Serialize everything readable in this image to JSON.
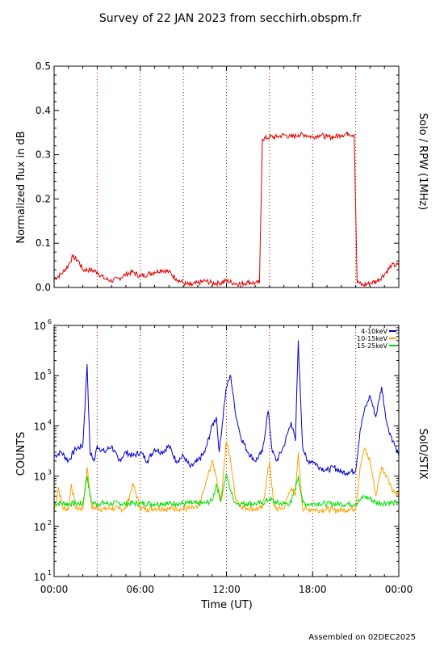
{
  "page": {
    "title": "Survey of 22 JAN 2023 from secchirh.obspm.fr",
    "footer": "Assembled on 02DEC2025"
  },
  "colors": {
    "red": "#e00000",
    "blue": "#0000d0",
    "orange": "#ffa000",
    "green": "#00e000",
    "dotted_grid": "#a00000"
  },
  "chart_data": [
    {
      "type": "line",
      "ylabel": "Normalized flux in dB",
      "right_label": "Solo / RPW (1MHz)",
      "xlim": [
        0,
        24
      ],
      "ylim": [
        0,
        0.5
      ],
      "yticks": [
        0.0,
        0.1,
        0.2,
        0.3,
        0.4,
        0.5
      ],
      "ytick_labels": [
        "0.0",
        "0.1",
        "0.2",
        "0.3",
        "0.4",
        "0.5"
      ],
      "vlines": [
        3,
        6,
        9,
        12,
        15,
        18,
        21
      ],
      "series": [
        {
          "color": "#e00000",
          "x": [
            0,
            0.5,
            1.0,
            1.3,
            1.7,
            2.0,
            2.5,
            3.0,
            3.5,
            4.0,
            4.5,
            5.0,
            5.5,
            6.0,
            6.5,
            7.0,
            7.5,
            8.0,
            8.5,
            9.0,
            9.5,
            10.0,
            10.5,
            11.0,
            11.5,
            12.0,
            12.5,
            13.0,
            13.5,
            14.0,
            14.3,
            14.5,
            15.0,
            15.5,
            16.0,
            16.5,
            17.0,
            17.5,
            18.0,
            18.5,
            19.0,
            19.5,
            20.0,
            20.5,
            20.9,
            21.1,
            21.5,
            22.0,
            22.5,
            23.0,
            23.5,
            24.0
          ],
          "y": [
            0.02,
            0.03,
            0.05,
            0.07,
            0.06,
            0.04,
            0.04,
            0.035,
            0.02,
            0.015,
            0.02,
            0.03,
            0.035,
            0.025,
            0.03,
            0.035,
            0.04,
            0.035,
            0.02,
            0.01,
            0.005,
            0.01,
            0.015,
            0.01,
            0.01,
            0.015,
            0.01,
            0.008,
            0.012,
            0.01,
            0.01,
            0.335,
            0.34,
            0.34,
            0.345,
            0.34,
            0.345,
            0.345,
            0.34,
            0.345,
            0.34,
            0.34,
            0.345,
            0.348,
            0.345,
            0.012,
            0.005,
            0.01,
            0.015,
            0.03,
            0.05,
            0.05
          ]
        }
      ]
    },
    {
      "type": "line",
      "ylabel": "COUNTS",
      "right_label": "SolO/STIX",
      "xlabel": "Time (UT)",
      "xlim": [
        0,
        24
      ],
      "ylim_log10": [
        1,
        6
      ],
      "yscale": "log",
      "ytick_labels": [
        {
          "base": "10",
          "exp": "1"
        },
        {
          "base": "10",
          "exp": "2"
        },
        {
          "base": "10",
          "exp": "3"
        },
        {
          "base": "10",
          "exp": "4"
        },
        {
          "base": "10",
          "exp": "5"
        },
        {
          "base": "10",
          "exp": "6"
        }
      ],
      "xticks": [
        0,
        6,
        12,
        18,
        24
      ],
      "xtick_labels": [
        "00:00",
        "06:00",
        "12:00",
        "18:00",
        "00:00"
      ],
      "vlines": [
        3,
        6,
        9,
        12,
        15,
        18,
        21
      ],
      "legend": [
        {
          "name": "4-10keV",
          "color": "#0000d0"
        },
        {
          "name": "10-15keV",
          "color": "#ffa000"
        },
        {
          "name": "15-25keV",
          "color": "#00e000"
        }
      ],
      "legend_placement": "top-right",
      "series": [
        {
          "name": "4-10keV",
          "color": "#0000d0",
          "x": [
            0,
            0.5,
            1.0,
            1.5,
            2.0,
            2.3,
            2.5,
            2.8,
            3.0,
            3.5,
            4.0,
            4.5,
            5.0,
            5.5,
            6.0,
            6.5,
            7.0,
            7.5,
            8.0,
            8.5,
            9.0,
            9.5,
            10.0,
            10.5,
            11.0,
            11.3,
            11.5,
            11.8,
            12.0,
            12.3,
            12.6,
            13.0,
            13.5,
            14.0,
            14.5,
            14.9,
            15.2,
            15.5,
            16.0,
            16.5,
            16.8,
            17.0,
            17.3,
            17.6,
            18.0,
            18.5,
            19.0,
            19.5,
            20.0,
            20.5,
            21.0,
            21.3,
            21.6,
            22.0,
            22.4,
            22.8,
            23.2,
            23.6,
            24.0
          ],
          "y": [
            2500,
            3000,
            2000,
            3500,
            4000,
            170000,
            3000,
            2000,
            4000,
            3000,
            4000,
            2000,
            3000,
            2500,
            3000,
            2000,
            3500,
            3000,
            4000,
            2000,
            2500,
            1500,
            2000,
            3000,
            10000,
            15000,
            3000,
            20000,
            60000,
            100000,
            20000,
            6000,
            3000,
            2000,
            3000,
            20000,
            3000,
            2000,
            4000,
            12000,
            5000,
            500000,
            4000,
            2000,
            2000,
            1500,
            1300,
            1500,
            1200,
            1200,
            1300,
            8000,
            20000,
            40000,
            15000,
            60000,
            10000,
            5000,
            2500
          ]
        },
        {
          "name": "10-15keV",
          "color": "#ffa000",
          "x": [
            0,
            0.3,
            0.6,
            1.0,
            1.2,
            1.5,
            2.0,
            2.3,
            2.6,
            3.0,
            3.5,
            4.0,
            4.5,
            5.0,
            5.5,
            6.0,
            6.5,
            7.0,
            7.5,
            8.0,
            8.5,
            9.0,
            9.5,
            10.0,
            10.5,
            11.0,
            11.3,
            11.6,
            12.0,
            12.3,
            12.6,
            13.0,
            13.5,
            14.0,
            14.5,
            15.0,
            15.3,
            15.6,
            16.0,
            16.5,
            16.8,
            17.0,
            17.3,
            17.6,
            18.0,
            18.5,
            19.0,
            19.5,
            20.0,
            20.5,
            21.0,
            21.3,
            21.6,
            22.0,
            22.4,
            22.8,
            23.2,
            23.6,
            24.0
          ],
          "y": [
            200,
            600,
            230,
            220,
            700,
            230,
            220,
            1500,
            240,
            230,
            220,
            230,
            220,
            230,
            700,
            230,
            220,
            230,
            230,
            220,
            230,
            220,
            230,
            230,
            600,
            2000,
            1000,
            300,
            5000,
            2000,
            400,
            250,
            230,
            220,
            230,
            2000,
            250,
            220,
            230,
            600,
            400,
            3000,
            230,
            220,
            220,
            210,
            220,
            210,
            210,
            220,
            230,
            1500,
            3500,
            2000,
            400,
            1500,
            1000,
            500,
            400
          ]
        },
        {
          "name": "15-25keV",
          "color": "#00e000",
          "x": [
            0,
            0.5,
            1.0,
            1.5,
            2.0,
            2.3,
            2.6,
            3.0,
            3.5,
            4.0,
            4.5,
            5.0,
            5.5,
            6.0,
            6.5,
            7.0,
            7.5,
            8.0,
            8.5,
            9.0,
            9.5,
            10.0,
            10.5,
            11.0,
            11.3,
            11.6,
            12.0,
            12.3,
            12.6,
            13.0,
            13.5,
            14.0,
            14.5,
            15.0,
            15.5,
            16.0,
            16.5,
            17.0,
            17.3,
            17.6,
            18.0,
            18.5,
            19.0,
            19.5,
            20.0,
            20.5,
            21.0,
            21.3,
            21.6,
            22.0,
            22.4,
            22.8,
            23.2,
            23.6,
            24.0
          ],
          "y": [
            280,
            290,
            280,
            290,
            280,
            1000,
            300,
            280,
            290,
            280,
            290,
            280,
            290,
            280,
            290,
            280,
            290,
            280,
            290,
            280,
            290,
            280,
            290,
            320,
            700,
            320,
            1100,
            500,
            300,
            280,
            290,
            280,
            290,
            350,
            290,
            280,
            290,
            1000,
            300,
            280,
            280,
            290,
            280,
            280,
            280,
            280,
            280,
            330,
            400,
            350,
            300,
            290,
            300,
            290,
            290
          ]
        }
      ]
    }
  ]
}
